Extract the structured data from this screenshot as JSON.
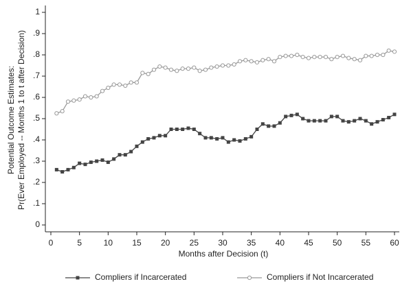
{
  "chart_data": {
    "type": "line",
    "y_label_lines": [
      "Potential Outcome Estimates:",
      "Pr(Ever Employed -- Months 1 to t after Decision)"
    ],
    "x_label": "Months after Decision (t)",
    "x": [
      1,
      2,
      3,
      4,
      5,
      6,
      7,
      8,
      9,
      10,
      11,
      12,
      13,
      14,
      15,
      16,
      17,
      18,
      19,
      20,
      21,
      22,
      23,
      24,
      25,
      26,
      27,
      28,
      29,
      30,
      31,
      32,
      33,
      34,
      35,
      36,
      37,
      38,
      39,
      40,
      41,
      42,
      43,
      44,
      45,
      46,
      47,
      48,
      49,
      50,
      51,
      52,
      53,
      54,
      55,
      56,
      57,
      58,
      59,
      60
    ],
    "series": [
      {
        "name": "Compliers if Incarcerated",
        "color": "#444444",
        "marker": "square",
        "values": [
          0.26,
          0.25,
          0.26,
          0.27,
          0.29,
          0.285,
          0.295,
          0.3,
          0.305,
          0.295,
          0.31,
          0.33,
          0.33,
          0.345,
          0.37,
          0.39,
          0.405,
          0.41,
          0.42,
          0.42,
          0.45,
          0.45,
          0.45,
          0.455,
          0.45,
          0.43,
          0.41,
          0.41,
          0.405,
          0.41,
          0.39,
          0.4,
          0.395,
          0.405,
          0.415,
          0.45,
          0.475,
          0.465,
          0.465,
          0.48,
          0.51,
          0.515,
          0.52,
          0.5,
          0.49,
          0.49,
          0.49,
          0.49,
          0.51,
          0.51,
          0.49,
          0.485,
          0.49,
          0.5,
          0.49,
          0.475,
          0.485,
          0.495,
          0.505,
          0.52
        ]
      },
      {
        "name": "Compliers if Not Incarcerated",
        "color": "#999999",
        "marker": "circle",
        "values": [
          0.525,
          0.535,
          0.58,
          0.585,
          0.59,
          0.605,
          0.6,
          0.605,
          0.63,
          0.645,
          0.66,
          0.66,
          0.655,
          0.67,
          0.67,
          0.715,
          0.71,
          0.73,
          0.745,
          0.74,
          0.73,
          0.725,
          0.735,
          0.735,
          0.74,
          0.725,
          0.73,
          0.74,
          0.745,
          0.75,
          0.75,
          0.755,
          0.77,
          0.775,
          0.77,
          0.765,
          0.775,
          0.78,
          0.77,
          0.79,
          0.795,
          0.795,
          0.8,
          0.79,
          0.785,
          0.79,
          0.79,
          0.79,
          0.78,
          0.79,
          0.795,
          0.785,
          0.78,
          0.775,
          0.795,
          0.795,
          0.8,
          0.8,
          0.82,
          0.815
        ]
      }
    ],
    "xlim": [
      0,
      60
    ],
    "xticks": [
      0,
      5,
      10,
      15,
      20,
      25,
      30,
      35,
      40,
      45,
      50,
      55,
      60
    ],
    "ylim": [
      0,
      1
    ],
    "yticks": [
      0,
      {
        "value": 0.1,
        "label": ".1"
      },
      {
        "value": 0.2,
        "label": ".2"
      },
      {
        "value": 0.3,
        "label": ".3"
      },
      {
        "value": 0.4,
        "label": ".4"
      },
      {
        "value": 0.5,
        "label": ".5"
      },
      {
        "value": 0.6,
        "label": ".6"
      },
      {
        "value": 0.7,
        "label": ".7"
      },
      {
        "value": 0.8,
        "label": ".8"
      },
      {
        "value": 0.9,
        "label": ".9"
      },
      1
    ],
    "grid": false,
    "legend": "bottom"
  }
}
